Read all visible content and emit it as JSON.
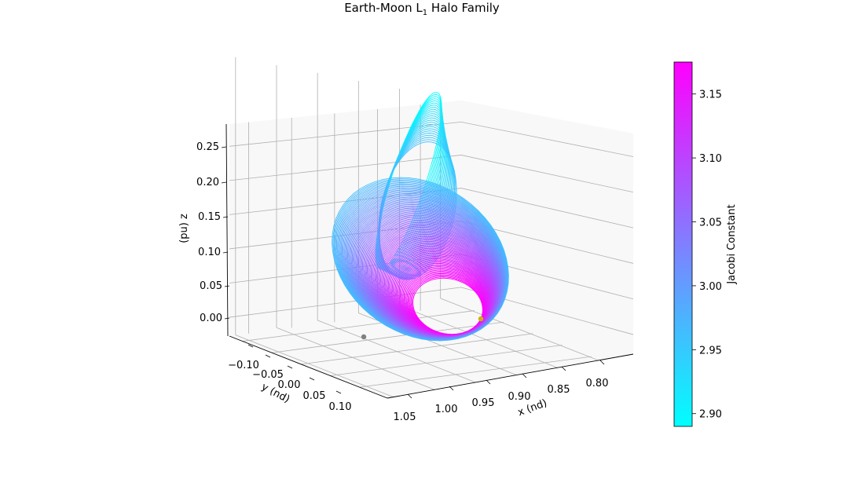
{
  "chart_data": {
    "type": "line3d",
    "title": "Earth-Moon L",
    "title_subscript": "1",
    "title_suffix": " Halo Family",
    "xlabel": "x (nd)",
    "ylabel": "y (nd)",
    "zlabel": "(pu) z",
    "x_ticks": [
      "1.05",
      "1.00",
      "0.95",
      "0.90",
      "0.85",
      "0.80"
    ],
    "y_ticks": [
      "−0.10",
      "−0.05",
      "0.00",
      "0.05",
      "0.10"
    ],
    "z_ticks": [
      "0.25",
      "0.20",
      "0.15",
      "0.10",
      "0.05",
      "0.00"
    ],
    "x_range": [
      0.77,
      1.07
    ],
    "y_range": [
      -0.13,
      0.14
    ],
    "z_range": [
      -0.03,
      0.28
    ],
    "colorbar": {
      "label": "Jacobi Constant",
      "ticks": [
        "3.15",
        "3.10",
        "3.05",
        "3.00",
        "2.95",
        "2.90"
      ],
      "range": [
        2.89,
        3.175
      ],
      "colormap": [
        "#00ffff",
        "#ff00ff"
      ]
    },
    "family": {
      "orbit_count": 110,
      "jacobi_range": [
        2.89,
        3.175
      ],
      "members_shown": "L1 northern halo orbits"
    },
    "markers": [
      {
        "name": "Moon",
        "x": 0.988,
        "y": 0.0,
        "z": 0.0,
        "color": "#808080"
      },
      {
        "name": "L1 point",
        "x": 0.837,
        "y": 0.0,
        "z": 0.0,
        "color": "#c8b400"
      }
    ],
    "grid": true
  }
}
